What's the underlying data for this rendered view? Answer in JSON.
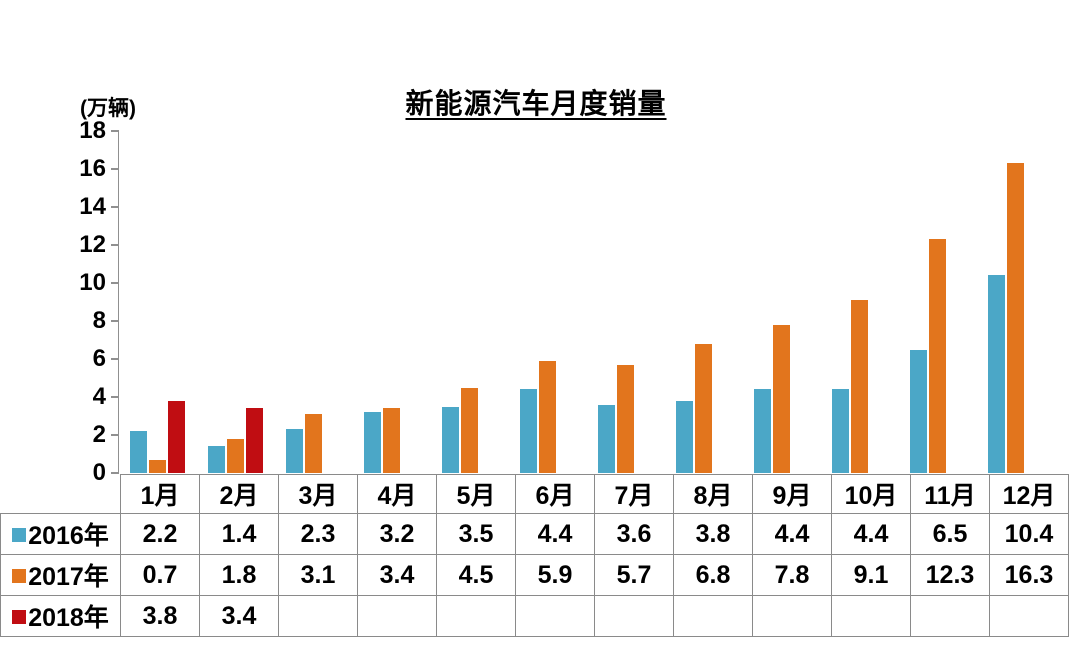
{
  "chart_data": {
    "type": "bar",
    "title": "新能源汽车月度销量",
    "unit_label": "(万辆)",
    "categories": [
      "1月",
      "2月",
      "3月",
      "4月",
      "5月",
      "6月",
      "7月",
      "8月",
      "9月",
      "10月",
      "11月",
      "12月"
    ],
    "series": [
      {
        "name": "2016年",
        "color": "#4BA7C7",
        "values": [
          2.2,
          1.4,
          2.3,
          3.2,
          3.5,
          4.4,
          3.6,
          3.8,
          4.4,
          4.4,
          6.5,
          10.4
        ]
      },
      {
        "name": "2017年",
        "color": "#E2751D",
        "values": [
          0.7,
          1.8,
          3.1,
          3.4,
          4.5,
          5.9,
          5.7,
          6.8,
          7.8,
          9.1,
          12.3,
          16.3
        ]
      },
      {
        "name": "2018年",
        "color": "#C00D12",
        "values": [
          3.8,
          3.4,
          null,
          null,
          null,
          null,
          null,
          null,
          null,
          null,
          null,
          null
        ]
      }
    ],
    "ylim": [
      0,
      18
    ],
    "yticks": [
      0,
      2,
      4,
      6,
      8,
      10,
      12,
      14,
      16,
      18
    ],
    "grid": false,
    "legend_position": "data-table-left",
    "colors": {
      "axis": "#909090",
      "table_border": "#8a8a8a",
      "text": "#000000",
      "background": "#ffffff"
    }
  }
}
